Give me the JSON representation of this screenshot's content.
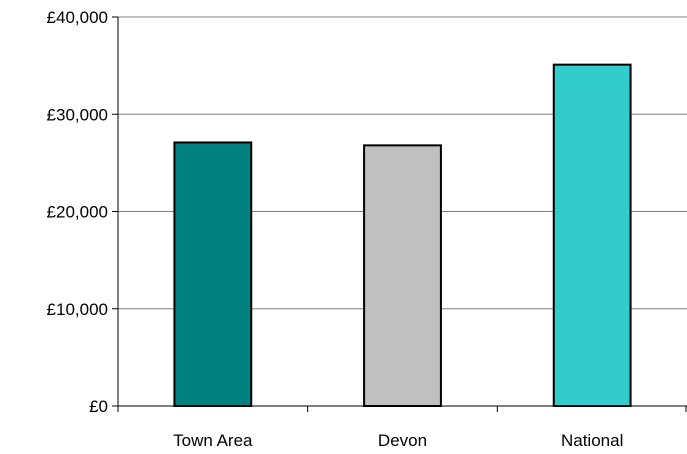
{
  "chart_data": {
    "type": "bar",
    "title": "",
    "xlabel": "",
    "ylabel": "",
    "categories": [
      "Town Area",
      "Devon",
      "National"
    ],
    "values": [
      27100,
      26800,
      35100
    ],
    "bar_colors": [
      "#008080",
      "#C0C0C0",
      "#33CCCC"
    ],
    "ylim": [
      0,
      40000
    ],
    "yticks": [
      0,
      10000,
      20000,
      30000,
      40000
    ],
    "ytick_labels": [
      "£0",
      "£10,000",
      "£20,000",
      "£30,000",
      "£40,000"
    ],
    "grid": true,
    "legend": "none"
  }
}
